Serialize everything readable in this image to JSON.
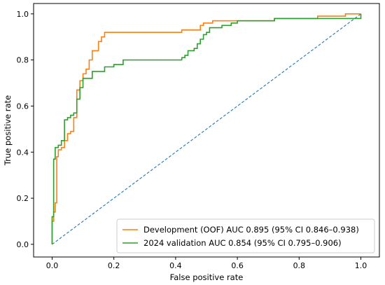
{
  "chart_data": {
    "type": "line",
    "title": "",
    "xlabel": "False positive rate",
    "ylabel": "True positive rate",
    "xlim": [
      -0.06,
      1.06
    ],
    "ylim": [
      -0.055,
      1.045
    ],
    "x_ticks": [
      "0.0",
      "0.2",
      "0.4",
      "0.6",
      "0.8",
      "1.0"
    ],
    "y_ticks": [
      "0.0",
      "0.2",
      "0.4",
      "0.6",
      "0.8",
      "1.0"
    ],
    "grid": false,
    "legend_position": "bottom-right",
    "series": [
      {
        "name": "Development (OOF) AUC 0.895 (95% CI 0.846–0.938)",
        "color": "#ff7f0e",
        "style": "step",
        "x": [
          0.0,
          0.0,
          0.005,
          0.005,
          0.01,
          0.01,
          0.015,
          0.015,
          0.02,
          0.02,
          0.03,
          0.03,
          0.04,
          0.04,
          0.05,
          0.05,
          0.06,
          0.06,
          0.07,
          0.07,
          0.08,
          0.08,
          0.09,
          0.09,
          0.1,
          0.1,
          0.11,
          0.11,
          0.12,
          0.12,
          0.13,
          0.13,
          0.15,
          0.15,
          0.16,
          0.16,
          0.17,
          0.17,
          0.42,
          0.42,
          0.48,
          0.48,
          0.49,
          0.49,
          0.52,
          0.52,
          0.6,
          0.6,
          0.72,
          0.72,
          0.79,
          0.79,
          0.86,
          0.86,
          0.95,
          0.95,
          1.0
        ],
        "y": [
          0.0,
          0.1,
          0.1,
          0.14,
          0.14,
          0.18,
          0.18,
          0.38,
          0.38,
          0.41,
          0.41,
          0.42,
          0.42,
          0.45,
          0.45,
          0.48,
          0.48,
          0.49,
          0.49,
          0.55,
          0.55,
          0.67,
          0.67,
          0.71,
          0.71,
          0.74,
          0.74,
          0.76,
          0.76,
          0.8,
          0.8,
          0.84,
          0.84,
          0.88,
          0.88,
          0.9,
          0.9,
          0.92,
          0.92,
          0.93,
          0.93,
          0.95,
          0.95,
          0.96,
          0.96,
          0.97,
          0.97,
          0.97,
          0.97,
          0.98,
          0.98,
          0.98,
          0.98,
          0.99,
          0.99,
          1.0,
          1.0
        ]
      },
      {
        "name": "2024 validation AUC 0.854 (95% CI 0.795–0.906)",
        "color": "#2ca02c",
        "style": "step",
        "x": [
          0.0,
          0.0,
          0.005,
          0.005,
          0.01,
          0.01,
          0.02,
          0.02,
          0.03,
          0.03,
          0.04,
          0.04,
          0.05,
          0.05,
          0.06,
          0.06,
          0.07,
          0.07,
          0.08,
          0.08,
          0.09,
          0.09,
          0.1,
          0.1,
          0.13,
          0.13,
          0.17,
          0.17,
          0.2,
          0.2,
          0.23,
          0.23,
          0.42,
          0.42,
          0.43,
          0.43,
          0.44,
          0.44,
          0.46,
          0.46,
          0.47,
          0.47,
          0.48,
          0.48,
          0.49,
          0.49,
          0.5,
          0.5,
          0.51,
          0.51,
          0.55,
          0.55,
          0.58,
          0.58,
          0.6,
          0.6,
          0.72,
          0.72,
          1.0,
          1.0
        ],
        "y": [
          0.0,
          0.12,
          0.12,
          0.37,
          0.37,
          0.42,
          0.42,
          0.43,
          0.43,
          0.45,
          0.45,
          0.54,
          0.54,
          0.55,
          0.55,
          0.56,
          0.56,
          0.57,
          0.57,
          0.63,
          0.63,
          0.68,
          0.68,
          0.72,
          0.72,
          0.75,
          0.75,
          0.77,
          0.77,
          0.78,
          0.78,
          0.8,
          0.8,
          0.81,
          0.81,
          0.82,
          0.82,
          0.84,
          0.84,
          0.85,
          0.85,
          0.87,
          0.87,
          0.89,
          0.89,
          0.91,
          0.91,
          0.92,
          0.92,
          0.94,
          0.94,
          0.95,
          0.95,
          0.96,
          0.96,
          0.97,
          0.97,
          0.98,
          0.98,
          1.0
        ]
      },
      {
        "name": "",
        "color": "#1f77b4",
        "style": "dashed",
        "x": [
          0.0,
          1.0
        ],
        "y": [
          0.0,
          1.0
        ]
      }
    ]
  }
}
